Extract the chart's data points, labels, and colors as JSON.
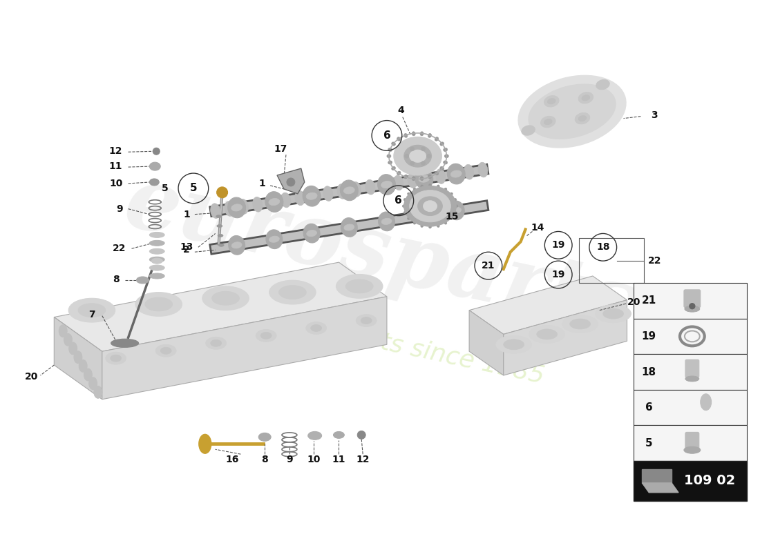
{
  "bg_color": "#ffffff",
  "part_code": "109 02",
  "legend_parts": [
    21,
    19,
    18,
    6,
    5
  ],
  "watermark1": "eurosparts",
  "watermark2": "a passion for parts since 1985",
  "label_color": "#222222",
  "line_color": "#555555",
  "part_color": "#888888",
  "light_part": "#cccccc",
  "dark_part": "#444444",
  "gold_color": "#c8a030",
  "yellow_green": "#c8cc20"
}
